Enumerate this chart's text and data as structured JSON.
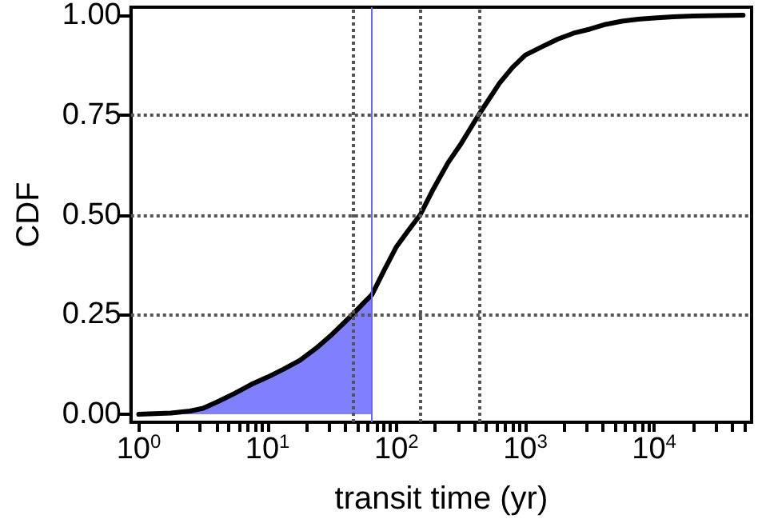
{
  "chart_data": {
    "type": "line",
    "xlabel": "transit time (yr)",
    "ylabel": "CDF",
    "log": "x",
    "xlim": [
      0.87,
      57000
    ],
    "ylim": [
      -0.02,
      1.02
    ],
    "xticks": [
      {
        "value": 1,
        "label": "10$^{0}$"
      },
      {
        "value": 2,
        "label": null
      },
      {
        "value": 3,
        "label": null
      },
      {
        "value": 4,
        "label": null
      },
      {
        "value": 5,
        "label": null
      },
      {
        "value": 6,
        "label": null
      },
      {
        "value": 7,
        "label": null
      },
      {
        "value": 8,
        "label": null
      },
      {
        "value": 9,
        "label": null
      },
      {
        "value": 10,
        "label": "10$^{1}$"
      },
      {
        "value": 20,
        "label": null
      },
      {
        "value": 30,
        "label": null
      },
      {
        "value": 40,
        "label": null
      },
      {
        "value": 50,
        "label": null
      },
      {
        "value": 60,
        "label": null
      },
      {
        "value": 70,
        "label": null
      },
      {
        "value": 80,
        "label": null
      },
      {
        "value": 90,
        "label": null
      },
      {
        "value": 100,
        "label": "10$^{2}$"
      },
      {
        "value": 200,
        "label": null
      },
      {
        "value": 300,
        "label": null
      },
      {
        "value": 400,
        "label": null
      },
      {
        "value": 500,
        "label": null
      },
      {
        "value": 600,
        "label": null
      },
      {
        "value": 700,
        "label": null
      },
      {
        "value": 800,
        "label": null
      },
      {
        "value": 900,
        "label": null
      },
      {
        "value": 1000,
        "label": "10$^{3}$"
      },
      {
        "value": 2000,
        "label": null
      },
      {
        "value": 3000,
        "label": null
      },
      {
        "value": 4000,
        "label": null
      },
      {
        "value": 5000,
        "label": null
      },
      {
        "value": 6000,
        "label": null
      },
      {
        "value": 7000,
        "label": null
      },
      {
        "value": 8000,
        "label": null
      },
      {
        "value": 9000,
        "label": null
      },
      {
        "value": 10000,
        "label": "10$^{4}$"
      },
      {
        "value": 20000,
        "label": null
      },
      {
        "value": 30000,
        "label": null
      },
      {
        "value": 40000,
        "label": null
      },
      {
        "value": 50000,
        "label": null
      }
    ],
    "yticks": [
      {
        "value": 0,
        "label": "0.00"
      },
      {
        "value": 0.25,
        "label": "0.25"
      },
      {
        "value": 0.5,
        "label": "0.50"
      },
      {
        "value": 0.75,
        "label": "0.75"
      },
      {
        "value": 1,
        "label": "1.00"
      }
    ],
    "grid": false,
    "marker": "none",
    "series": [
      {
        "type": "area",
        "color": "#8080ff",
        "x": [
          1,
          1.78,
          2.5,
          3.16,
          4.2,
          5.6,
          7.5,
          10,
          13.3,
          17.8,
          23.7,
          31.6,
          38,
          45.5,
          56,
          64.6
        ],
        "values": [
          0,
          0.003,
          0.008,
          0.015,
          0.033,
          0.053,
          0.075,
          0.093,
          0.113,
          0.135,
          0.165,
          0.2,
          0.225,
          0.25,
          0.28,
          0.3
        ]
      },
      {
        "type": "line",
        "color": "#000000",
        "x": [
          1,
          1.78,
          2.5,
          3.16,
          4.2,
          5.6,
          7.5,
          10,
          13.3,
          17.8,
          23.7,
          31.6,
          38,
          45.5,
          56,
          64.6,
          80,
          100,
          120,
          153,
          190,
          251,
          320,
          434,
          631,
          800,
          1000,
          1330,
          1780,
          2370,
          3160,
          4200,
          5620,
          7500,
          10000,
          14000,
          20000,
          30000,
          49000
        ],
        "values": [
          0,
          0.003,
          0.008,
          0.015,
          0.033,
          0.053,
          0.075,
          0.093,
          0.113,
          0.135,
          0.165,
          0.2,
          0.225,
          0.25,
          0.28,
          0.3,
          0.36,
          0.42,
          0.455,
          0.5,
          0.56,
          0.63,
          0.68,
          0.75,
          0.83,
          0.87,
          0.9,
          0.92,
          0.94,
          0.955,
          0.965,
          0.977,
          0.985,
          0.99,
          0.993,
          0.996,
          0.998,
          0.999,
          1.0
        ]
      }
    ],
    "ref_lines": [
      {
        "axis": "y",
        "value": 0.25,
        "color": "#555555",
        "line_style": "dotted"
      },
      {
        "axis": "y",
        "value": 0.5,
        "color": "#555555",
        "line_style": "dotted"
      },
      {
        "axis": "y",
        "value": 0.75,
        "color": "#555555",
        "line_style": "dotted"
      },
      {
        "axis": "x",
        "value": 45.5,
        "color": "#555555",
        "line_style": "dotted"
      },
      {
        "axis": "x",
        "value": 64.6,
        "color": "#6666ff",
        "line_style": "solid"
      },
      {
        "axis": "x",
        "value": 153,
        "color": "#555555",
        "line_style": "dotted"
      },
      {
        "axis": "x",
        "value": 434,
        "color": "#555555",
        "line_style": "dotted"
      }
    ]
  }
}
